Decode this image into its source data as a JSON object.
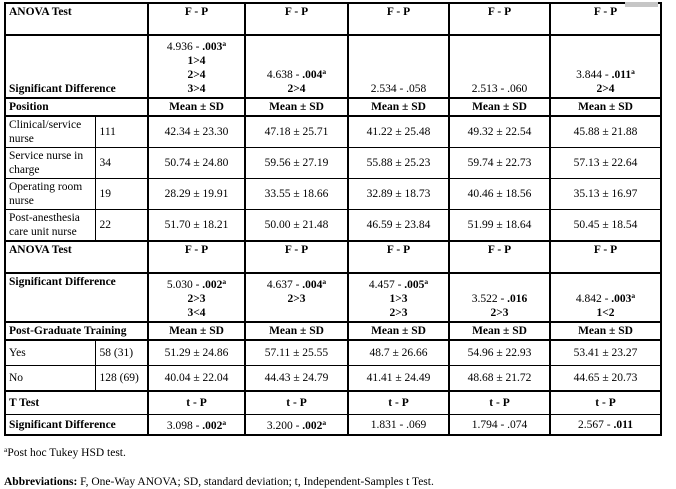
{
  "colors": {
    "text": "#000000",
    "border": "#000000",
    "background": "#ffffff",
    "scroll_fragment": "#c6c6c6"
  },
  "table": {
    "rows": [
      {
        "name": "anova-test-row-1",
        "kind": "anova",
        "label": "ANOVA Test",
        "cells": [
          "F - P",
          "F - P",
          "F - P",
          "F - P",
          "F - P"
        ]
      },
      {
        "name": "significant-difference-row-1",
        "kind": "sig",
        "label": "Significant Difference",
        "labelValign": "bottom",
        "cells": [
          {
            "stat": "4.936 - ",
            "p": ".003",
            "bold": true,
            "sup": "a",
            "diffs": [
              "1>4",
              "2>4",
              "3>4"
            ],
            "valign": "top"
          },
          {
            "stat": "4.638 - ",
            "p": ".004",
            "bold": true,
            "sup": "a",
            "diffs": [
              "2>4"
            ],
            "valign": "bottom"
          },
          {
            "stat": "2.534 - ",
            "p": ".058",
            "bold": false,
            "diffs": [],
            "valign": "bottom"
          },
          {
            "stat": "2.513 - ",
            "p": ".060",
            "bold": false,
            "diffs": [],
            "valign": "bottom"
          },
          {
            "stat": "3.844 - ",
            "p": ".011",
            "bold": true,
            "sup": "a",
            "diffs": [
              "2>4"
            ],
            "valign": "bottom"
          }
        ]
      },
      {
        "name": "position-header-row",
        "kind": "subhead",
        "label": "Position",
        "cells": [
          "Mean ± SD",
          "Mean ± SD",
          "Mean ± SD",
          "Mean ± SD",
          "Mean ± SD"
        ]
      },
      {
        "name": "position-row-clinical-service-nurse",
        "kind": "data",
        "label": "Clinical/service nurse",
        "n": "111",
        "cells": [
          "42.34 ± 23.30",
          "47.18 ± 25.71",
          "41.22 ± 25.48",
          "49.32 ± 22.54",
          "45.88 ± 21.88"
        ]
      },
      {
        "name": "position-row-service-nurse-in-charge",
        "kind": "data",
        "label": "Service nurse in charge",
        "n": "34",
        "cells": [
          "50.74 ± 24.80",
          "59.56 ± 27.19",
          "55.88 ± 25.23",
          "59.74 ± 22.73",
          "57.13 ± 22.64"
        ]
      },
      {
        "name": "position-row-operating-room-nurse",
        "kind": "data",
        "label": "Operating room nurse",
        "n": "19",
        "cells": [
          "28.29 ± 19.91",
          "33.55 ± 18.66",
          "32.89 ± 18.73",
          "40.46 ± 18.56",
          "35.13 ± 16.97"
        ]
      },
      {
        "name": "position-row-post-anesthesia-care-unit-nurse",
        "kind": "data",
        "label": "Post-anesthesia care unit nurse",
        "n": "22",
        "cells": [
          "51.70 ± 18.21",
          "50.00 ± 21.48",
          "46.59 ± 23.84",
          "51.99 ± 18.64",
          "50.45 ± 18.54"
        ]
      },
      {
        "name": "anova-test-row-2",
        "kind": "anova",
        "label": "ANOVA Test",
        "cells": [
          "F - P",
          "F - P",
          "F - P",
          "F - P",
          "F - P"
        ]
      },
      {
        "name": "significant-difference-row-2",
        "kind": "sig",
        "label": "Significant Difference",
        "labelValign": "top",
        "cells": [
          {
            "stat": "5.030 - ",
            "p": ".002",
            "bold": true,
            "sup": "a",
            "diffs": [
              "2>3",
              "3<4"
            ],
            "valign": "top"
          },
          {
            "stat": "4.637 - ",
            "p": ".004",
            "bold": true,
            "sup": "a",
            "diffs": [
              "2>3"
            ],
            "valign": "top"
          },
          {
            "stat": "4.457 - ",
            "p": ".005",
            "bold": true,
            "sup": "a",
            "diffs": [
              "1>3",
              "2>3"
            ],
            "valign": "top"
          },
          {
            "stat": "3.522 - ",
            "p": ".016",
            "bold": true,
            "diffs": [
              "2>3"
            ],
            "valign": "bottom"
          },
          {
            "stat": "4.842 - ",
            "p": ".003",
            "bold": true,
            "sup": "a",
            "diffs": [
              "1<2"
            ],
            "valign": "bottom"
          }
        ]
      },
      {
        "name": "post-graduate-training-header-row",
        "kind": "subhead",
        "label": "Post-Graduate Training",
        "cells": [
          "Mean ± SD",
          "Mean ± SD",
          "Mean ± SD",
          "Mean ± SD",
          "Mean ± SD"
        ]
      },
      {
        "name": "training-row-yes",
        "kind": "data",
        "label": "Yes",
        "n": "58 (31)",
        "cells": [
          "51.29 ± 24.86",
          "57.11 ± 25.55",
          "48.7 ± 26.66",
          "54.96 ± 22.93",
          "53.41 ± 23.27"
        ]
      },
      {
        "name": "training-row-no",
        "kind": "data",
        "label": "No",
        "n": "128 (69)",
        "cells": [
          "40.04 ± 22.04",
          "44.43 ± 24.79",
          "41.41 ± 24.49",
          "48.68 ± 21.72",
          "44.65 ± 20.73"
        ]
      },
      {
        "name": "t-test-row",
        "kind": "ttest",
        "label": "T Test",
        "cells": [
          "t - P",
          "t - P",
          "t - P",
          "t - P",
          "t - P"
        ]
      },
      {
        "name": "significant-difference-row-3",
        "kind": "sigline",
        "label": "Significant Difference",
        "cells": [
          {
            "stat": "3.098 - ",
            "p": ".002",
            "bold": true,
            "sup": "a",
            "diffs": []
          },
          {
            "stat": "3.200 - ",
            "p": ".002",
            "bold": true,
            "sup": "a",
            "diffs": []
          },
          {
            "stat": "1.831 - ",
            "p": ".069",
            "bold": false,
            "diffs": []
          },
          {
            "stat": "1.794 - ",
            "p": ".074",
            "bold": false,
            "diffs": []
          },
          {
            "stat": "2.567 - ",
            "p": ".011",
            "bold": true,
            "diffs": []
          }
        ]
      }
    ]
  },
  "footnotes": [
    {
      "sup": "a",
      "text": "Post hoc Tukey HSD test."
    },
    {
      "lead": "Abbreviations:",
      "text": " F, One-Way ANOVA; SD, standard deviation; t, Independent-Samples t Test."
    }
  ]
}
